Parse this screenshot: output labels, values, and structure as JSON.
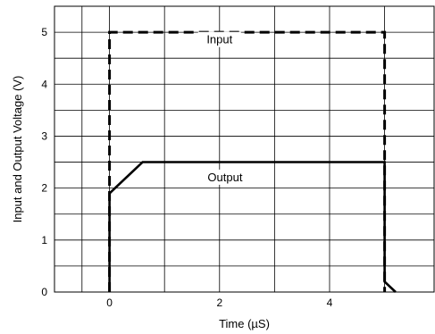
{
  "chart_data": {
    "type": "line",
    "title": "",
    "xlabel": "Time (µS)",
    "ylabel": "Input and Output Voltage (V)",
    "xlim": [
      -1,
      5.9
    ],
    "ylim": [
      0,
      5.5
    ],
    "x_ticks": [
      0,
      2,
      4
    ],
    "y_ticks": [
      0,
      1,
      2,
      3,
      4,
      5
    ],
    "grid": true,
    "x_gridlines": [
      -0.5,
      0,
      1,
      2,
      3,
      4,
      5
    ],
    "y_gridlines": [
      0.5,
      1,
      1.5,
      2,
      2.5,
      3,
      3.5,
      4,
      4.5,
      5
    ],
    "series": [
      {
        "name": "Input",
        "style": "dashed",
        "x": [
          0,
          0,
          5,
          5
        ],
        "y": [
          0,
          5,
          5,
          0
        ]
      },
      {
        "name": "Output",
        "style": "solid",
        "x": [
          0,
          0,
          0.6,
          5,
          5,
          5.2
        ],
        "y": [
          0,
          1.9,
          2.5,
          2.5,
          0.2,
          0
        ]
      }
    ],
    "annotations": [
      {
        "text": "Input",
        "x": 2,
        "y": 4.8
      },
      {
        "text": "Output",
        "x": 2.1,
        "y": 2.15
      }
    ]
  }
}
